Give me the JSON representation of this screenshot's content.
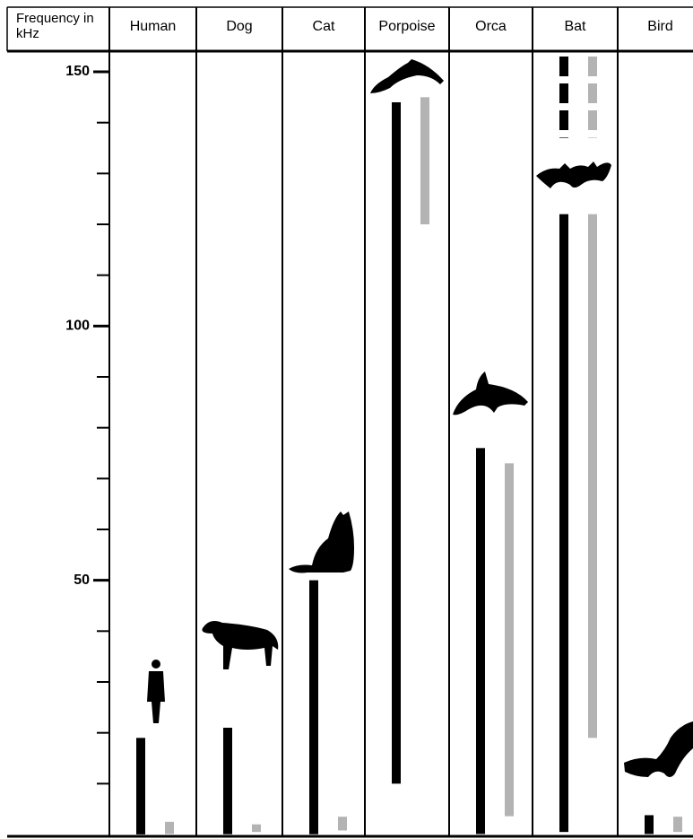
{
  "chart_data": {
    "type": "range_bar",
    "y_label": "Frequency in kHz",
    "categories": [
      "Human",
      "Dog",
      "Cat",
      "Porpoise",
      "Orca",
      "Bat",
      "Bird"
    ],
    "ylim": [
      0,
      150
    ],
    "yticks": [
      50,
      100,
      150
    ],
    "yticks_minor": [
      10,
      20,
      30,
      40,
      60,
      70,
      80,
      90,
      110,
      120,
      130,
      140
    ],
    "series": [
      {
        "color": "#000000",
        "lows": [
          0.02,
          0.06,
          0.05,
          10,
          0.1,
          0.5,
          0.1
        ],
        "values": [
          19,
          21,
          50,
          144,
          76,
          122,
          3.8
        ]
      },
      {
        "color": "#b3b3b3",
        "lows": [
          0.1,
          0.5,
          0.8,
          120,
          3.6,
          19,
          0.5
        ],
        "values": [
          2.5,
          2,
          3.5,
          145,
          73,
          122,
          3.5
        ]
      },
      {
        "color": "#000000",
        "dashed": true,
        "lows": [
          null,
          null,
          null,
          null,
          null,
          137,
          null
        ],
        "values": [
          null,
          null,
          null,
          null,
          null,
          153,
          null
        ]
      },
      {
        "color": "#b3b3b3",
        "dashed": true,
        "lows": [
          null,
          null,
          null,
          null,
          null,
          137,
          null
        ],
        "values": [
          null,
          null,
          null,
          null,
          null,
          153,
          null
        ]
      }
    ]
  }
}
